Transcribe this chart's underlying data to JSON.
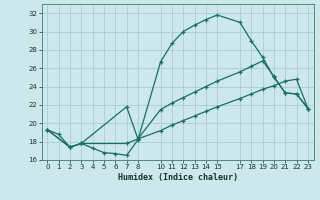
{
  "xlabel": "Humidex (Indice chaleur)",
  "background_color": "#cce8ec",
  "grid_color": "#a8cdd4",
  "line_color": "#1a6e64",
  "xlim": [
    -0.5,
    23.5
  ],
  "ylim": [
    16,
    33
  ],
  "xticks": [
    0,
    1,
    2,
    3,
    4,
    5,
    6,
    7,
    8,
    10,
    11,
    12,
    13,
    14,
    15,
    17,
    18,
    19,
    20,
    21,
    22,
    23
  ],
  "yticks": [
    16,
    18,
    20,
    22,
    24,
    26,
    28,
    30,
    32
  ],
  "curve1_x": [
    0,
    1,
    2,
    3,
    4,
    5,
    6,
    7,
    8,
    10,
    11,
    12,
    13,
    14,
    15,
    17,
    18,
    19,
    20,
    21,
    22,
    23
  ],
  "curve1_y": [
    19.3,
    18.8,
    17.4,
    17.8,
    17.3,
    16.8,
    16.7,
    16.5,
    18.2,
    26.7,
    28.7,
    30.0,
    30.7,
    31.3,
    31.8,
    31.0,
    29.0,
    27.2,
    25.0,
    23.3,
    23.2,
    21.6
  ],
  "curve2_x": [
    0,
    2,
    3,
    7,
    8,
    10,
    11,
    12,
    13,
    14,
    15,
    17,
    18,
    19,
    20,
    21,
    22,
    23
  ],
  "curve2_y": [
    19.3,
    17.4,
    17.8,
    21.8,
    18.3,
    21.5,
    22.2,
    22.8,
    23.4,
    24.0,
    24.6,
    25.6,
    26.2,
    26.8,
    25.1,
    23.3,
    23.2,
    21.6
  ],
  "curve3_x": [
    0,
    2,
    3,
    7,
    8,
    10,
    11,
    12,
    13,
    14,
    15,
    17,
    18,
    19,
    20,
    21,
    22,
    23
  ],
  "curve3_y": [
    19.3,
    17.4,
    17.8,
    17.8,
    18.3,
    19.2,
    19.8,
    20.3,
    20.8,
    21.3,
    21.8,
    22.7,
    23.2,
    23.7,
    24.1,
    24.6,
    24.8,
    21.6
  ]
}
